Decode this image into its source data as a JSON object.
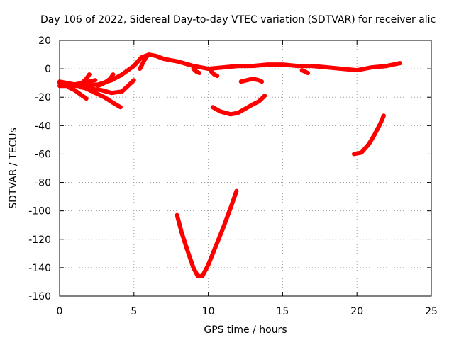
{
  "chart_data": {
    "type": "scatter",
    "title": "Day 106 of 2022, Sidereal Day-to-day VTEC variation (SDTVAR) for receiver alic",
    "xlabel": "GPS time / hours",
    "ylabel": "SDTVAR / TECUs",
    "xlim": [
      0,
      25
    ],
    "ylim": [
      -160,
      20
    ],
    "xticks": [
      0,
      5,
      10,
      15,
      20,
      25
    ],
    "yticks": [
      -160,
      -140,
      -120,
      -100,
      -80,
      -60,
      -40,
      -20,
      0,
      20
    ],
    "grid": true,
    "color": "#ff0000",
    "series": [
      {
        "points": [
          [
            0,
            -9
          ],
          [
            0.5,
            -10
          ],
          [
            1.0,
            -11
          ],
          [
            1.5,
            -10
          ],
          [
            2.0,
            -9
          ],
          [
            2.4,
            -8
          ]
        ]
      },
      {
        "points": [
          [
            0,
            -12
          ],
          [
            0.6,
            -12
          ],
          [
            1.2,
            -12
          ],
          [
            1.8,
            -12
          ],
          [
            2.6,
            -11
          ],
          [
            3.5,
            -8
          ],
          [
            4.2,
            -4
          ],
          [
            5.0,
            2
          ],
          [
            5.5,
            8
          ],
          [
            6.0,
            10
          ],
          [
            6.5,
            9
          ],
          [
            7.0,
            7
          ],
          [
            8.0,
            5
          ],
          [
            9.0,
            2
          ],
          [
            10.0,
            0
          ],
          [
            11.0,
            1
          ],
          [
            12.0,
            2
          ],
          [
            13.0,
            2
          ],
          [
            14.0,
            3
          ],
          [
            15.0,
            3
          ],
          [
            16.0,
            2
          ],
          [
            17.0,
            2
          ],
          [
            18.0,
            1
          ],
          [
            19.0,
            0
          ],
          [
            20.0,
            -1
          ],
          [
            20.5,
            0
          ],
          [
            21.0,
            1
          ],
          [
            22.0,
            2
          ],
          [
            22.9,
            4
          ]
        ]
      },
      {
        "points": [
          [
            0,
            -10
          ],
          [
            0.5,
            -11
          ],
          [
            1.0,
            -12
          ],
          [
            1.4,
            -11
          ],
          [
            1.8,
            -7
          ],
          [
            2.0,
            -4
          ]
        ]
      },
      {
        "points": [
          [
            0.6,
            -13
          ],
          [
            1.0,
            -15
          ],
          [
            1.4,
            -18
          ],
          [
            1.8,
            -21
          ]
        ]
      },
      {
        "points": [
          [
            1.4,
            -13
          ],
          [
            2.0,
            -14
          ],
          [
            2.8,
            -15
          ],
          [
            3.5,
            -17
          ],
          [
            4.2,
            -16
          ],
          [
            4.6,
            -12
          ],
          [
            5.0,
            -8
          ]
        ]
      },
      {
        "points": [
          [
            1.8,
            -14
          ],
          [
            2.4,
            -17
          ],
          [
            3.0,
            -20
          ],
          [
            3.6,
            -24
          ],
          [
            4.1,
            -27
          ]
        ]
      },
      {
        "points": [
          [
            2.6,
            -12
          ],
          [
            3.0,
            -10
          ],
          [
            3.4,
            -7
          ],
          [
            3.6,
            -4
          ]
        ]
      },
      {
        "points": [
          [
            5.4,
            0
          ],
          [
            5.6,
            4
          ],
          [
            5.8,
            8
          ],
          [
            6.0,
            10
          ]
        ]
      },
      {
        "points": [
          [
            9.0,
            0
          ],
          [
            9.2,
            -2
          ],
          [
            9.4,
            -3
          ]
        ]
      },
      {
        "points": [
          [
            10.2,
            -2
          ],
          [
            10.4,
            -4
          ],
          [
            10.6,
            -5
          ]
        ]
      },
      {
        "points": [
          [
            16.3,
            -1
          ],
          [
            16.5,
            -2
          ],
          [
            16.7,
            -3
          ]
        ]
      },
      {
        "points": [
          [
            10.3,
            -27
          ],
          [
            10.8,
            -30
          ],
          [
            11.5,
            -32
          ],
          [
            12.0,
            -31
          ],
          [
            12.5,
            -28
          ],
          [
            13.0,
            -25
          ],
          [
            13.4,
            -23
          ],
          [
            13.8,
            -19
          ]
        ]
      },
      {
        "points": [
          [
            12.2,
            -9
          ],
          [
            12.6,
            -8
          ],
          [
            13.0,
            -7
          ],
          [
            13.4,
            -8
          ],
          [
            13.6,
            -9
          ]
        ]
      },
      {
        "points": [
          [
            7.9,
            -103
          ],
          [
            8.2,
            -115
          ],
          [
            8.6,
            -128
          ],
          [
            9.0,
            -140
          ],
          [
            9.3,
            -146
          ],
          [
            9.6,
            -146
          ],
          [
            10.0,
            -138
          ],
          [
            10.5,
            -125
          ],
          [
            11.0,
            -112
          ],
          [
            11.5,
            -98
          ],
          [
            11.9,
            -86
          ]
        ]
      },
      {
        "points": [
          [
            19.8,
            -60
          ],
          [
            20.3,
            -59
          ],
          [
            20.8,
            -53
          ],
          [
            21.2,
            -46
          ],
          [
            21.6,
            -38
          ],
          [
            21.8,
            -33
          ]
        ]
      }
    ]
  }
}
